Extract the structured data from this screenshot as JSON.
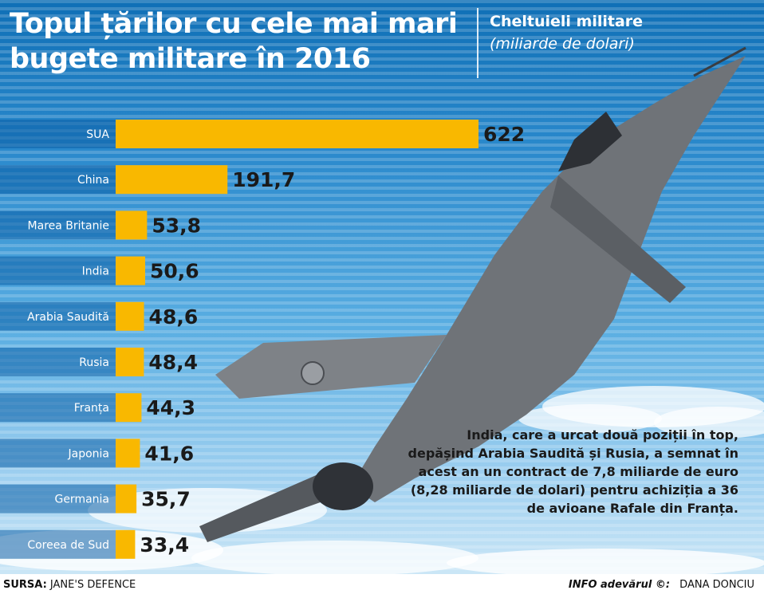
{
  "title": "Topul țărilor cu cele mai mari bugete militare în 2016",
  "legend": {
    "title": "Cheltuieli militare",
    "subtitle": "(miliarde de dolari)"
  },
  "colors": {
    "bar": "#f9b800",
    "background_top": "#0f6fb6",
    "text_dark": "#1a1a1a"
  },
  "chart_data": {
    "type": "bar",
    "orientation": "horizontal",
    "title": "Topul țărilor cu cele mai mari bugete militare în 2016",
    "categories": [
      "SUA",
      "China",
      "Marea Britanie",
      "India",
      "Arabia Saudită",
      "Rusia",
      "Franța",
      "Japonia",
      "Germania",
      "Coreea de Sud"
    ],
    "values": [
      622,
      191.7,
      53.8,
      50.6,
      48.6,
      48.4,
      44.3,
      41.6,
      35.7,
      33.4
    ],
    "value_labels": [
      "622",
      "191,7",
      "53,8",
      "50,6",
      "48,6",
      "48,4",
      "44,3",
      "41,6",
      "35,7",
      "33,4"
    ],
    "xlim": [
      0,
      622
    ],
    "grid": false,
    "legend": "top-right"
  },
  "note": "India, care a urcat două poziții în top, depășind Arabia Saudită și Rusia, a semnat în acest an un contract de 7,8 miliarde de euro (8,28 miliarde de dolari) pentru achiziția a 36 de avioane Rafale din Franța.",
  "footer": {
    "source_label": "SURSA:",
    "source_value": " JANE'S DEFENCE",
    "brand": "INFO adevărul ©:",
    "author": "DANA DONCIU"
  }
}
